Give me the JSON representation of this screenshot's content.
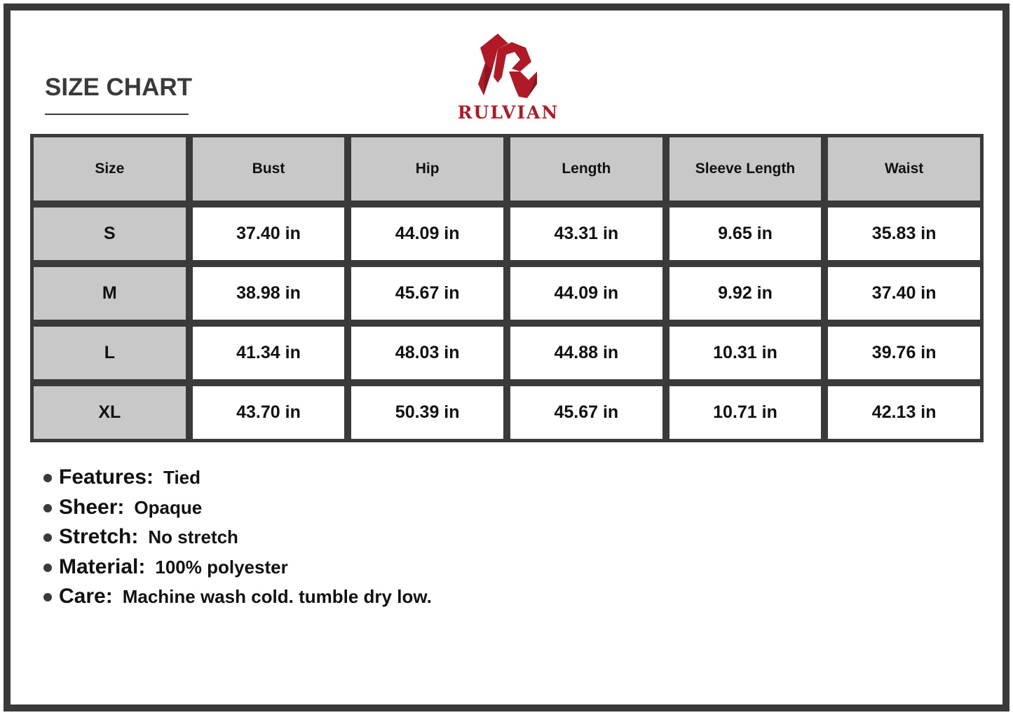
{
  "title": "SIZE CHART",
  "brand": {
    "name": "RULVIAN",
    "color": "#b01a27"
  },
  "table": {
    "headers": [
      "Size",
      "Bust",
      "Hip",
      "Length",
      "Sleeve Length",
      "Waist"
    ],
    "rows": [
      [
        "S",
        "37.40 in",
        "44.09 in",
        "43.31 in",
        "9.65 in",
        "35.83 in"
      ],
      [
        "M",
        "38.98 in",
        "45.67 in",
        "44.09 in",
        "9.92 in",
        "37.40 in"
      ],
      [
        "L",
        "41.34 in",
        "48.03 in",
        "44.88 in",
        "10.31 in",
        "39.76 in"
      ],
      [
        "XL",
        "43.70 in",
        "50.39 in",
        "45.67 in",
        "10.71 in",
        "42.13 in"
      ]
    ]
  },
  "features": [
    {
      "label": "Features:",
      "value": "Tied"
    },
    {
      "label": "Sheer:",
      "value": "Opaque"
    },
    {
      "label": "Stretch:",
      "value": "No stretch"
    },
    {
      "label": "Material:",
      "value": "100% polyester"
    },
    {
      "label": "Care:",
      "value": "Machine wash cold. tumble dry low."
    }
  ]
}
